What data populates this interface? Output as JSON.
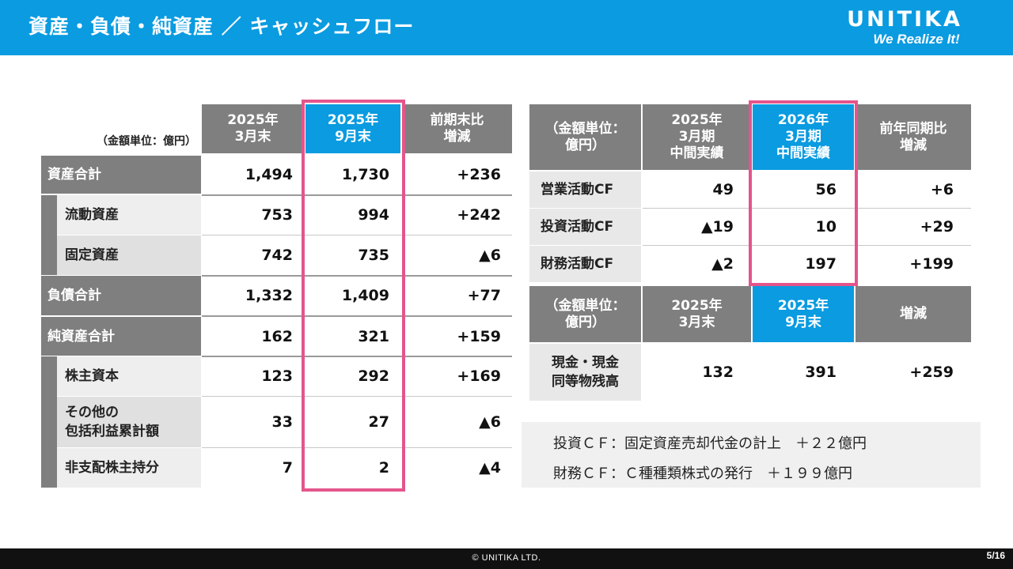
{
  "header": {
    "title": "資産・負債・純資産 ／ キャッシュフロー",
    "logo_name": "UNITIKA",
    "logo_tagline": "We Realize It!"
  },
  "balance_sheet": {
    "unit": "（金額単位：億円）",
    "columns": [
      "2025年\n3月末",
      "2025年\n9月末",
      "前期末比\n増減"
    ],
    "rows": [
      {
        "label": "資産合計",
        "v1": "1,494",
        "v2": "1,730",
        "diff": "+236"
      },
      {
        "label": "流動資産",
        "v1": "753",
        "v2": "994",
        "diff": "+242"
      },
      {
        "label": "固定資産",
        "v1": "742",
        "v2": "735",
        "diff": "▲6"
      },
      {
        "label": "負債合計",
        "v1": "1,332",
        "v2": "1,409",
        "diff": "+77"
      },
      {
        "label": "純資産合計",
        "v1": "162",
        "v2": "321",
        "diff": "+159"
      },
      {
        "label": "株主資本",
        "v1": "123",
        "v2": "292",
        "diff": "+169"
      },
      {
        "label": "その他の\n包括利益累計額",
        "v1": "33",
        "v2": "27",
        "diff": "▲6"
      },
      {
        "label": "非支配株主持分",
        "v1": "7",
        "v2": "2",
        "diff": "▲4"
      }
    ]
  },
  "cashflow": {
    "unit": "（金額単位：\n億円）",
    "columns": [
      "2025年\n3月期\n中間実績",
      "2026年\n3月期\n中間実績",
      "前年同期比\n増減"
    ],
    "rows": [
      {
        "label": "営業活動CF",
        "v1": "49",
        "v2": "56",
        "diff": "+6"
      },
      {
        "label": "投資活動CF",
        "v1": "▲19",
        "v2": "10",
        "diff": "+29"
      },
      {
        "label": "財務活動CF",
        "v1": "▲2",
        "v2": "197",
        "diff": "+199"
      }
    ]
  },
  "cash": {
    "unit": "（金額単位：\n億円）",
    "columns": [
      "2025年\n3月末",
      "2025年\n9月末",
      "増減"
    ],
    "row": {
      "label": "現金・現金\n同等物残高",
      "v1": "132",
      "v2": "391",
      "diff": "+259"
    }
  },
  "notes": [
    "投資ＣＦ：固定資産売却代金の計上　＋２２億円",
    "財務ＣＦ：Ｃ種種類株式の発行　＋１９９億円"
  ],
  "footer": {
    "copyright": "© UNITIKA LTD.",
    "page": "5/16"
  }
}
